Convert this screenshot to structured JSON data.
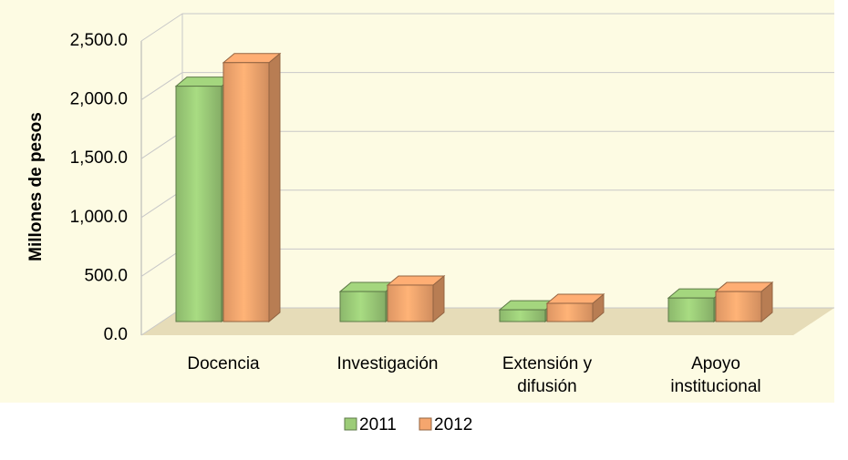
{
  "chart_data": {
    "type": "bar3d",
    "y_label": "Millones de pesos",
    "categories": [
      "Docencia",
      "Investigación",
      "Extensión y difusión",
      "Apoyo institucional"
    ],
    "series": [
      {
        "name": "2011",
        "color": "#9ccc78",
        "values": [
          2000,
          255,
          100,
          200
        ]
      },
      {
        "name": "2012",
        "color": "#f5a66e",
        "values": [
          2200,
          310,
          155,
          255
        ]
      }
    ],
    "ylim": [
      0,
      2500
    ],
    "yticks": [
      {
        "value": 0,
        "label": "0.0"
      },
      {
        "value": 500,
        "label": "500.0"
      },
      {
        "value": 1000,
        "label": "1,000.0"
      },
      {
        "value": 1500,
        "label": "1,500.0"
      },
      {
        "value": 2000,
        "label": "2,000.0"
      },
      {
        "value": 2500,
        "label": "2,500.0"
      }
    ],
    "grid": true,
    "legend": "bottom"
  }
}
